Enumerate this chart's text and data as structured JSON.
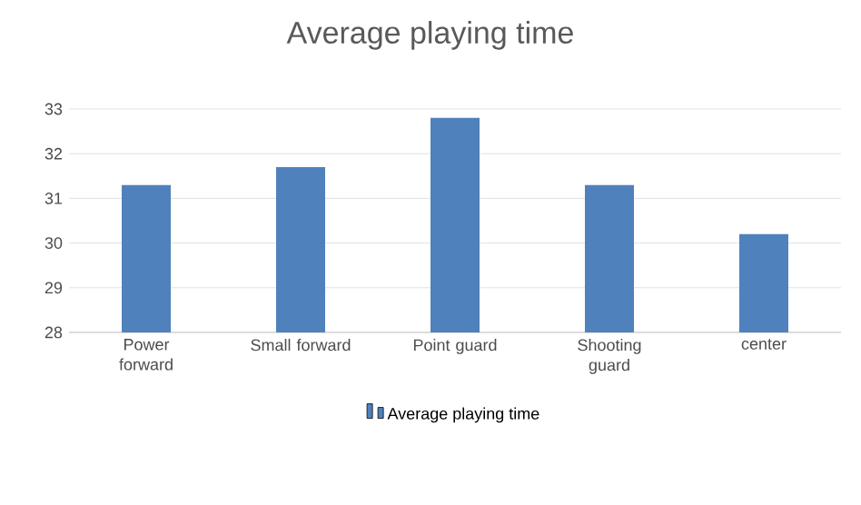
{
  "chart_data": {
    "type": "bar",
    "title": "Average playing time",
    "categories": [
      "Power forward",
      "Small forward",
      "Point guard",
      "Shooting guard",
      "center"
    ],
    "series": [
      {
        "name": "Average playing time",
        "color": "#4f81bd",
        "values": [
          31.3,
          31.7,
          32.8,
          31.3,
          30.2
        ]
      }
    ],
    "ylim": [
      28,
      33
    ],
    "yticks": [
      28,
      29,
      30,
      31,
      32,
      33
    ],
    "grid": "y",
    "legend": "bottom"
  }
}
